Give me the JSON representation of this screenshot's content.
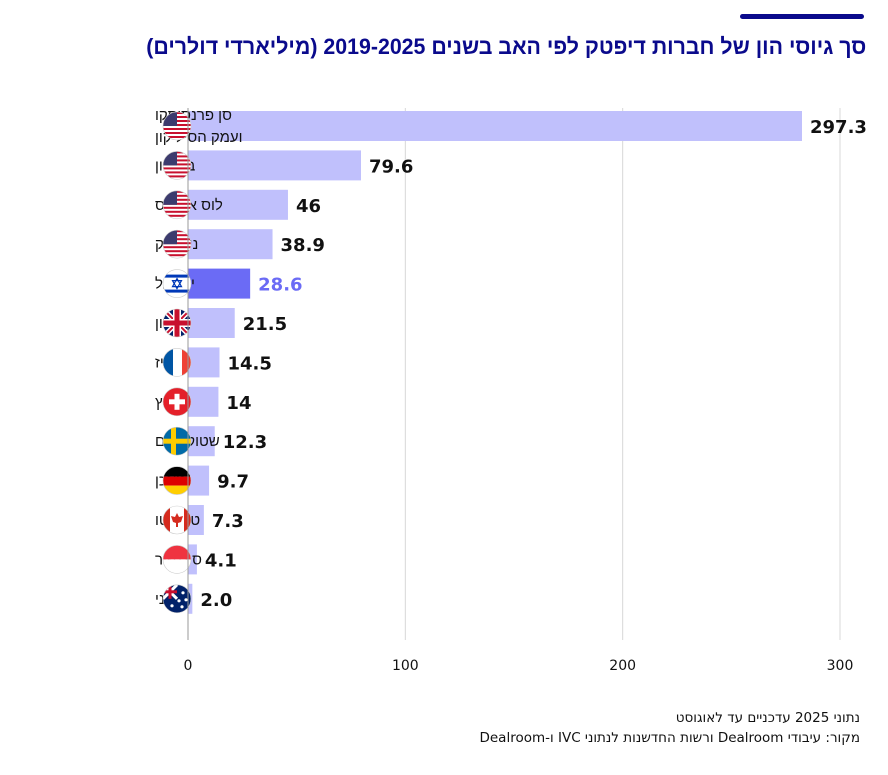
{
  "title": "סך גיוסי הון של חברות דיפטק לפי האב בשנים 2019-2025 (מיליארדי דולרים)",
  "notes": [
    "נתוני 2025 עדכניים עד לאוגוסט",
    "מקור: עיבודי Dealroom ורשות החדשנות לנתוני IVC ו-Dealroom"
  ],
  "chart_data": {
    "type": "bar",
    "orientation": "horizontal",
    "categories": [
      [
        "סן פרנסיסקו",
        "ועמק הסיליקון"
      ],
      [
        "בוסטון"
      ],
      [
        "לוס אנג'לס"
      ],
      [
        "ניו-יורק"
      ],
      [
        "ישראל"
      ],
      [
        "לונדון"
      ],
      [
        "פריז"
      ],
      [
        "שוויץ"
      ],
      [
        "שטוקהולם"
      ],
      [
        "מינכן"
      ],
      [
        "טורונטו"
      ],
      [
        "סינגפור"
      ],
      [
        "סידני"
      ]
    ],
    "values": [
      297.3,
      79.6,
      46,
      38.9,
      28.6,
      21.5,
      14.5,
      14,
      12.3,
      9.7,
      7.3,
      4.1,
      2.0
    ],
    "value_labels": [
      "297.3",
      "79.6",
      "46",
      "38.9",
      "28.6",
      "21.5",
      "14.5",
      "14",
      "12.3",
      "9.7",
      "7.3",
      "4.1",
      "2.0"
    ],
    "flags": [
      "us",
      "us",
      "us",
      "us",
      "il",
      "uk",
      "fr",
      "ch",
      "se",
      "de",
      "ca",
      "sg",
      "au"
    ],
    "highlight_index": 4,
    "xlim": [
      0,
      300
    ],
    "xticks": [
      "0",
      "100",
      "200",
      "300"
    ],
    "grid": true,
    "colors": {
      "bar": "#c0c0fc",
      "highlight": "#6b6bf5",
      "title": "#0a0a8c"
    }
  }
}
